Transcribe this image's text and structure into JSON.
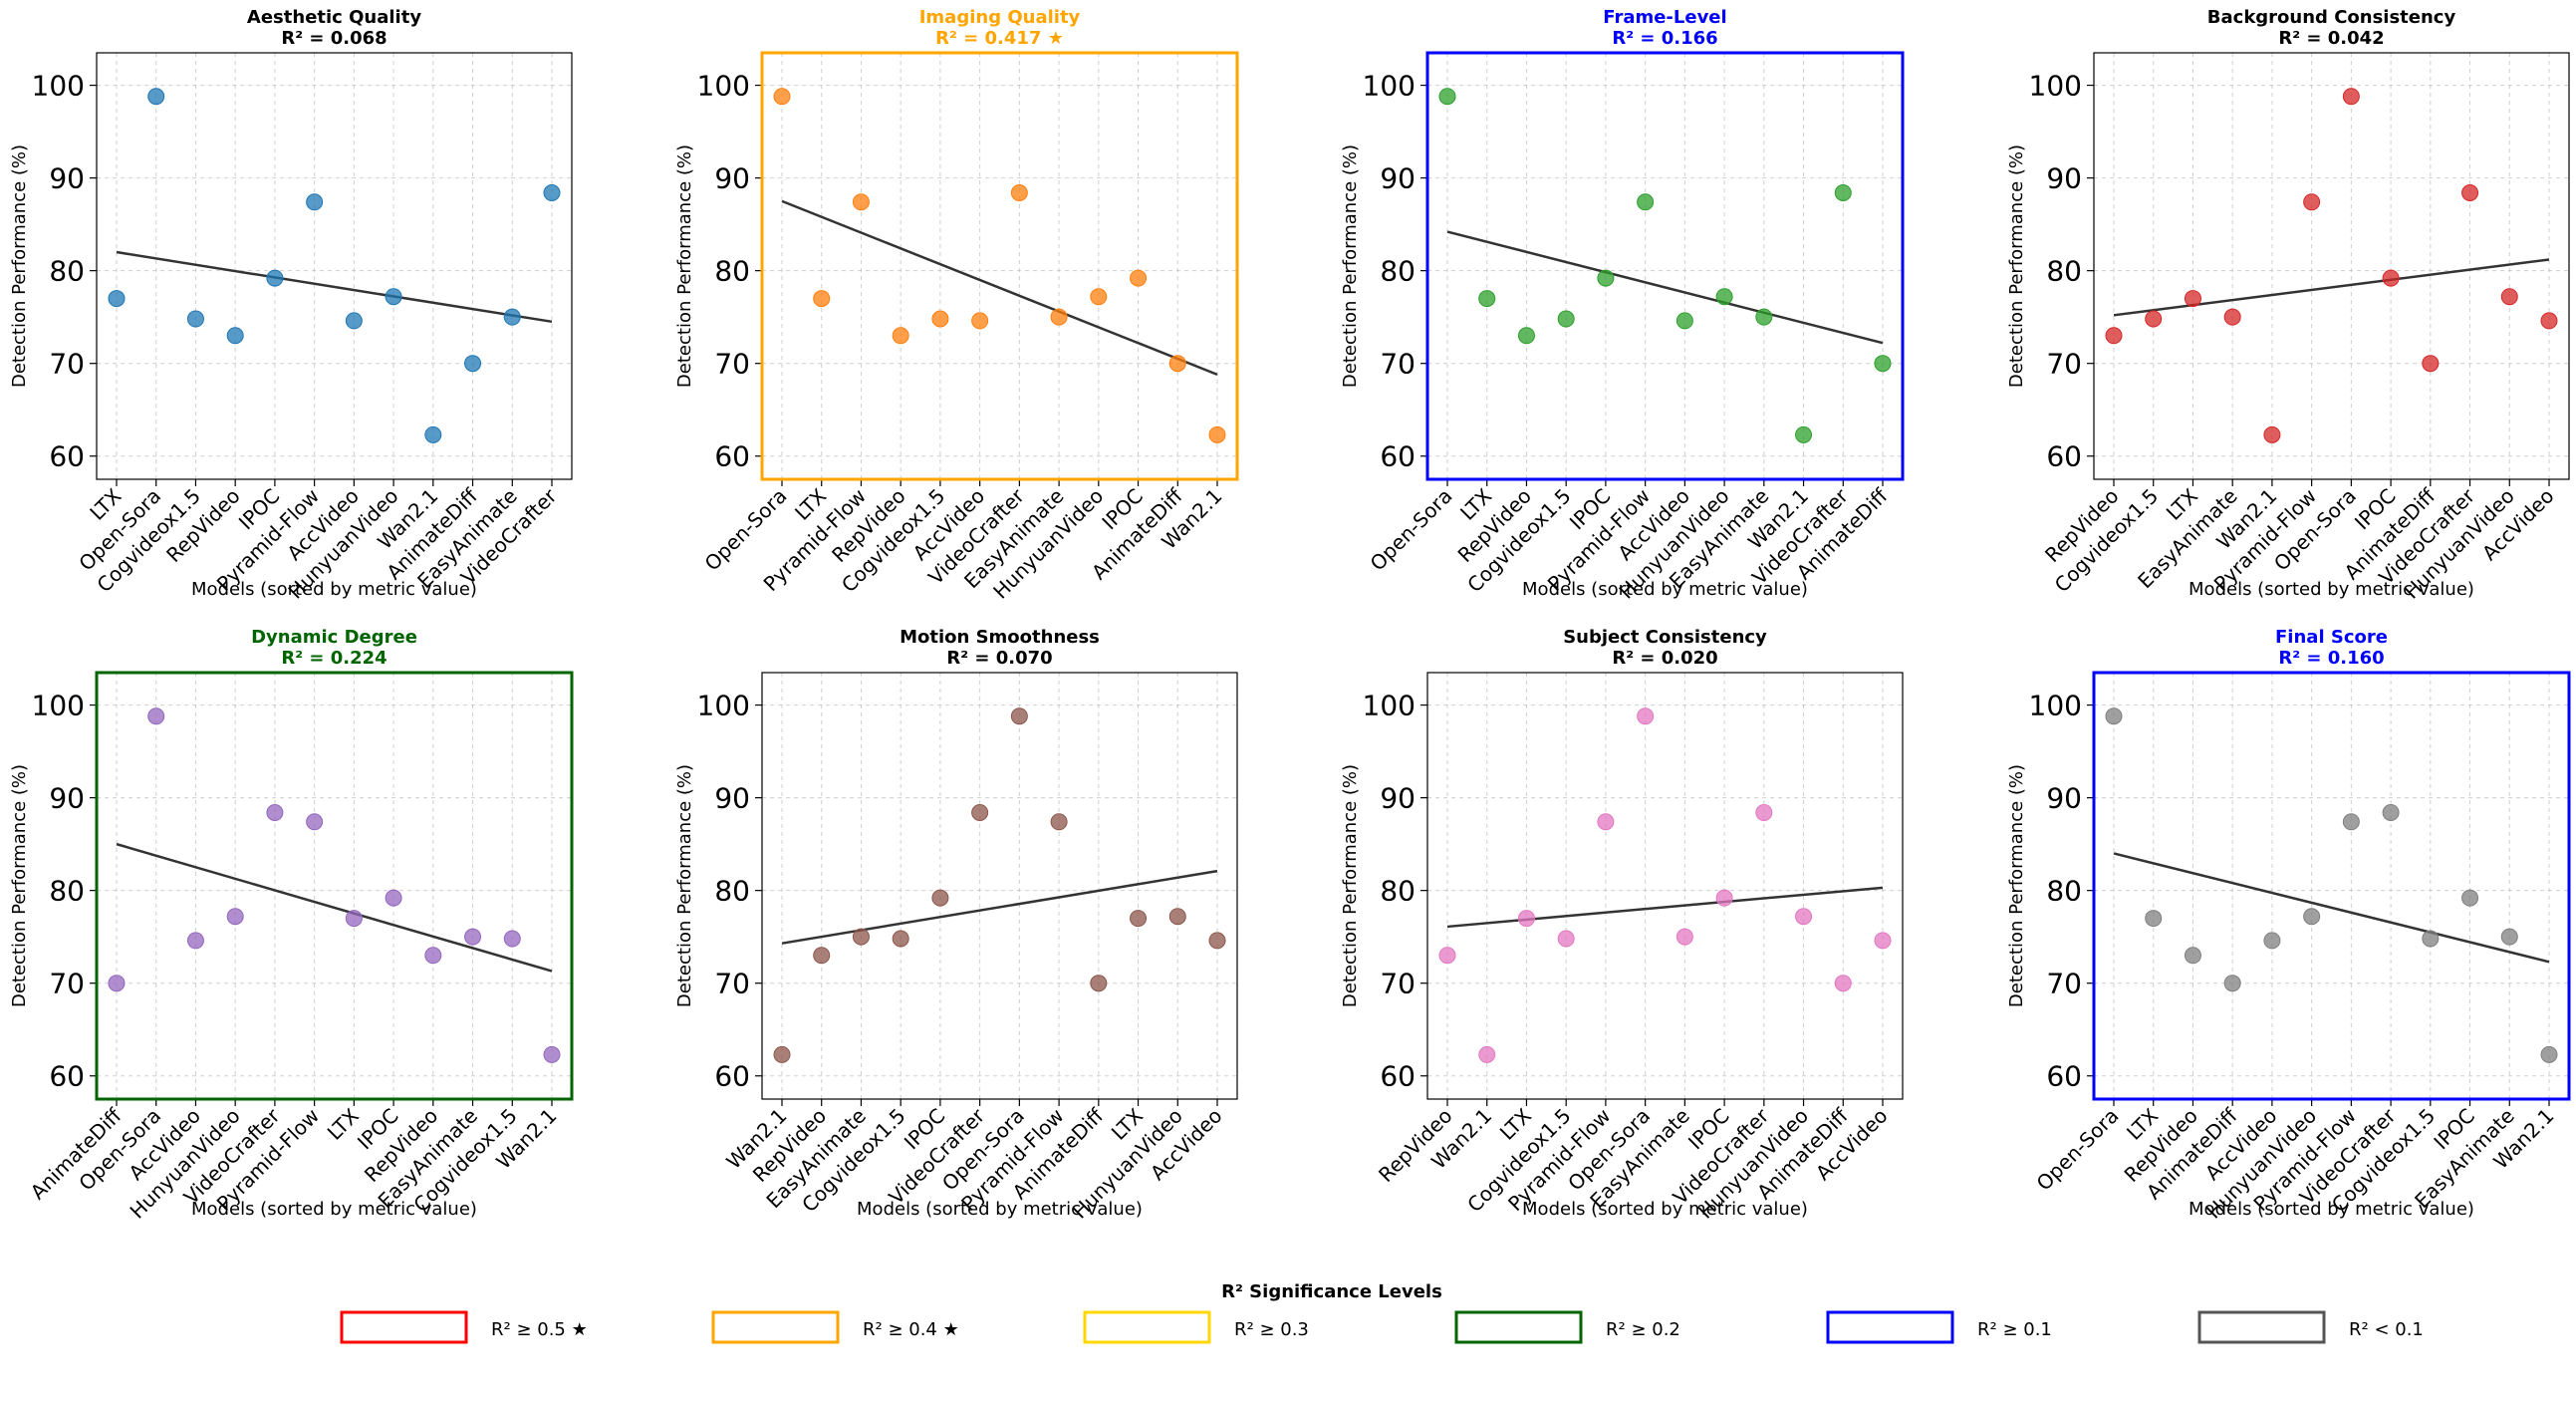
{
  "legend": {
    "title": "R² Significance Levels",
    "items": [
      {
        "label": "R² ≥ 0.5 ★",
        "color": "#ff0000"
      },
      {
        "label": "R² ≥ 0.4 ★",
        "color": "#ffa500"
      },
      {
        "label": "R² ≥ 0.3",
        "color": "#ffd700"
      },
      {
        "label": "R² ≥ 0.2",
        "color": "#006400"
      },
      {
        "label": "R² ≥ 0.1",
        "color": "#0000ff"
      },
      {
        "label": "R² < 0.1",
        "color": "#555555"
      }
    ]
  },
  "chart_data": [
    {
      "type": "scatter",
      "title": "Aesthetic Quality",
      "subtitle": "R² = 0.068",
      "title_color": "#000000",
      "frame_color": "#000000",
      "frame_bold": false,
      "point_color": "#1f77b4",
      "xlabel": "Models (sorted by metric value)",
      "ylabel": "Detection Performance (%)",
      "ylim": [
        57.5,
        103.5
      ],
      "yticks": [
        60,
        70,
        80,
        90,
        100
      ],
      "grid": true,
      "categories": [
        "LTX",
        "Open-Sora",
        "Cogvideox1.5",
        "RepVideo",
        "IPOC",
        "Pyramid-Flow",
        "AccVideo",
        "HunyuanVideo",
        "Wan2.1",
        "AnimateDiff",
        "EasyAnimate",
        "VideoCrafter"
      ],
      "values": [
        77.0,
        98.8,
        74.8,
        73.0,
        79.2,
        87.4,
        74.6,
        77.2,
        62.3,
        70.0,
        75.0,
        88.4
      ],
      "trend": [
        82.0,
        74.5
      ]
    },
    {
      "type": "scatter",
      "title": "Imaging Quality",
      "subtitle": "R² = 0.417 ★",
      "title_color": "#ffa500",
      "frame_color": "#ffa500",
      "frame_bold": true,
      "point_color": "#ff7f0e",
      "xlabel": "",
      "ylabel": "Detection Performance (%)",
      "ylim": [
        57.5,
        103.5
      ],
      "yticks": [
        60,
        70,
        80,
        90,
        100
      ],
      "grid": true,
      "categories": [
        "Open-Sora",
        "LTX",
        "Pyramid-Flow",
        "RepVideo",
        "Cogvideox1.5",
        "AccVideo",
        "VideoCrafter",
        "EasyAnimate",
        "HunyuanVideo",
        "IPOC",
        "AnimateDiff",
        "Wan2.1"
      ],
      "values": [
        98.8,
        77.0,
        87.4,
        73.0,
        74.8,
        74.6,
        88.4,
        75.0,
        77.2,
        79.2,
        70.0,
        62.3
      ],
      "trend": [
        87.5,
        68.8
      ]
    },
    {
      "type": "scatter",
      "title": "Frame-Level",
      "subtitle": "R² = 0.166",
      "title_color": "#0000ff",
      "frame_color": "#0000ff",
      "frame_bold": true,
      "point_color": "#2ca02c",
      "xlabel": "Models (sorted by metric value)",
      "ylabel": "Detection Performance (%)",
      "ylim": [
        57.5,
        103.5
      ],
      "yticks": [
        60,
        70,
        80,
        90,
        100
      ],
      "grid": true,
      "categories": [
        "Open-Sora",
        "LTX",
        "RepVideo",
        "Cogvideox1.5",
        "IPOC",
        "Pyramid-Flow",
        "AccVideo",
        "HunyuanVideo",
        "EasyAnimate",
        "Wan2.1",
        "VideoCrafter",
        "AnimateDiff"
      ],
      "values": [
        98.8,
        77.0,
        73.0,
        74.8,
        79.2,
        87.4,
        74.6,
        77.2,
        75.0,
        62.3,
        88.4,
        70.0
      ],
      "trend": [
        84.2,
        72.2
      ]
    },
    {
      "type": "scatter",
      "title": "Background Consistency",
      "subtitle": "R² = 0.042",
      "title_color": "#000000",
      "frame_color": "#000000",
      "frame_bold": false,
      "point_color": "#d62728",
      "xlabel": "Models (sorted by metric value)",
      "ylabel": "Detection Performance (%)",
      "ylim": [
        57.5,
        103.5
      ],
      "yticks": [
        60,
        70,
        80,
        90,
        100
      ],
      "grid": true,
      "categories": [
        "RepVideo",
        "Cogvideox1.5",
        "LTX",
        "EasyAnimate",
        "Wan2.1",
        "Pyramid-Flow",
        "Open-Sora",
        "IPOC",
        "AnimateDiff",
        "VideoCrafter",
        "HunyuanVideo",
        "AccVideo"
      ],
      "values": [
        73.0,
        74.8,
        77.0,
        75.0,
        62.3,
        87.4,
        98.8,
        79.2,
        70.0,
        88.4,
        77.2,
        74.6
      ],
      "trend": [
        75.2,
        81.2
      ]
    },
    {
      "type": "scatter",
      "title": "Dynamic Degree",
      "subtitle": "R² = 0.224",
      "title_color": "#006400",
      "frame_color": "#006400",
      "frame_bold": true,
      "point_color": "#9467bd",
      "xlabel": "Models (sorted by metric value)",
      "ylabel": "Detection Performance (%)",
      "ylim": [
        57.5,
        103.5
      ],
      "yticks": [
        60,
        70,
        80,
        90,
        100
      ],
      "grid": true,
      "categories": [
        "AnimateDiff",
        "Open-Sora",
        "AccVideo",
        "HunyuanVideo",
        "VideoCrafter",
        "Pyramid-Flow",
        "LTX",
        "IPOC",
        "RepVideo",
        "EasyAnimate",
        "Cogvideox1.5",
        "Wan2.1"
      ],
      "values": [
        70.0,
        98.8,
        74.6,
        77.2,
        88.4,
        87.4,
        77.0,
        79.2,
        73.0,
        75.0,
        74.8,
        62.3
      ],
      "trend": [
        85.0,
        71.3
      ]
    },
    {
      "type": "scatter",
      "title": "Motion Smoothness",
      "subtitle": "R² = 0.070",
      "title_color": "#000000",
      "frame_color": "#000000",
      "frame_bold": false,
      "point_color": "#8c564b",
      "xlabel": "Models (sorted by metric value)",
      "ylabel": "Detection Performance (%)",
      "ylim": [
        57.5,
        103.5
      ],
      "yticks": [
        60,
        70,
        80,
        90,
        100
      ],
      "grid": true,
      "categories": [
        "Wan2.1",
        "RepVideo",
        "EasyAnimate",
        "Cogvideox1.5",
        "IPOC",
        "VideoCrafter",
        "Open-Sora",
        "Pyramid-Flow",
        "AnimateDiff",
        "LTX",
        "HunyuanVideo",
        "AccVideo"
      ],
      "values": [
        62.3,
        73.0,
        75.0,
        74.8,
        79.2,
        88.4,
        98.8,
        87.4,
        70.0,
        77.0,
        77.2,
        74.6
      ],
      "trend": [
        74.3,
        82.1
      ]
    },
    {
      "type": "scatter",
      "title": "Subject Consistency",
      "subtitle": "R² = 0.020",
      "title_color": "#000000",
      "frame_color": "#000000",
      "frame_bold": false,
      "point_color": "#e377c2",
      "xlabel": "Models (sorted by metric value)",
      "ylabel": "Detection Performance (%)",
      "ylim": [
        57.5,
        103.5
      ],
      "yticks": [
        60,
        70,
        80,
        90,
        100
      ],
      "grid": true,
      "categories": [
        "RepVideo",
        "Wan2.1",
        "LTX",
        "Cogvideox1.5",
        "Pyramid-Flow",
        "Open-Sora",
        "EasyAnimate",
        "IPOC",
        "VideoCrafter",
        "HunyuanVideo",
        "AnimateDiff",
        "AccVideo"
      ],
      "values": [
        73.0,
        62.3,
        77.0,
        74.8,
        87.4,
        98.8,
        75.0,
        79.2,
        88.4,
        77.2,
        70.0,
        74.6
      ],
      "trend": [
        76.1,
        80.3
      ]
    },
    {
      "type": "scatter",
      "title": "Final Score",
      "subtitle": "R² = 0.160",
      "title_color": "#0000ff",
      "frame_color": "#0000ff",
      "frame_bold": true,
      "point_color": "#7f7f7f",
      "xlabel": "Models (sorted by metric value)",
      "ylabel": "Detection Performance (%)",
      "ylim": [
        57.5,
        103.5
      ],
      "yticks": [
        60,
        70,
        80,
        90,
        100
      ],
      "grid": true,
      "categories": [
        "Open-Sora",
        "LTX",
        "RepVideo",
        "AnimateDiff",
        "AccVideo",
        "HunyuanVideo",
        "Pyramid-Flow",
        "VideoCrafter",
        "Cogvideox1.5",
        "IPOC",
        "EasyAnimate",
        "Wan2.1"
      ],
      "values": [
        98.8,
        77.0,
        73.0,
        70.0,
        74.6,
        77.2,
        87.4,
        88.4,
        74.8,
        79.2,
        75.0,
        62.3
      ],
      "trend": [
        84.0,
        72.3
      ]
    }
  ]
}
